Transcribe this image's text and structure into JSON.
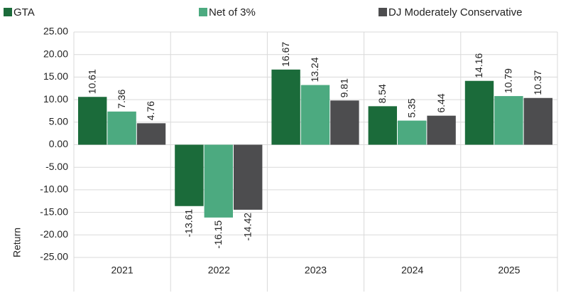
{
  "chart_data": {
    "type": "bar",
    "y_label": "Return",
    "categories": [
      "2021",
      "2022",
      "2023",
      "2024",
      "2025"
    ],
    "series": [
      {
        "name": "GTA",
        "color": "#1b6b3a",
        "values": [
          10.61,
          -13.61,
          16.67,
          8.54,
          14.16
        ]
      },
      {
        "name": "Net of 3%",
        "color": "#4caa80",
        "values": [
          7.36,
          -16.15,
          13.24,
          5.35,
          10.79
        ]
      },
      {
        "name": "DJ Moderately Conservative",
        "color": "#4d4d4f",
        "values": [
          4.76,
          -14.42,
          9.81,
          6.44,
          10.37
        ]
      }
    ],
    "ylim": [
      -25,
      25
    ],
    "yticks": [
      {
        "value": 25,
        "label": "25.00"
      },
      {
        "value": 20,
        "label": "20.00"
      },
      {
        "value": 15,
        "label": "15.00"
      },
      {
        "value": 10,
        "label": "10.00"
      },
      {
        "value": 5,
        "label": "5.00"
      },
      {
        "value": 0,
        "label": "0.00"
      },
      {
        "value": -5,
        "label": "-5.00"
      },
      {
        "value": -10,
        "label": "-10.00"
      },
      {
        "value": -15,
        "label": "-15.00"
      },
      {
        "value": -20,
        "label": "-20.00"
      },
      {
        "value": -25,
        "label": "-25.00"
      }
    ],
    "grid": true,
    "legend": "top"
  }
}
